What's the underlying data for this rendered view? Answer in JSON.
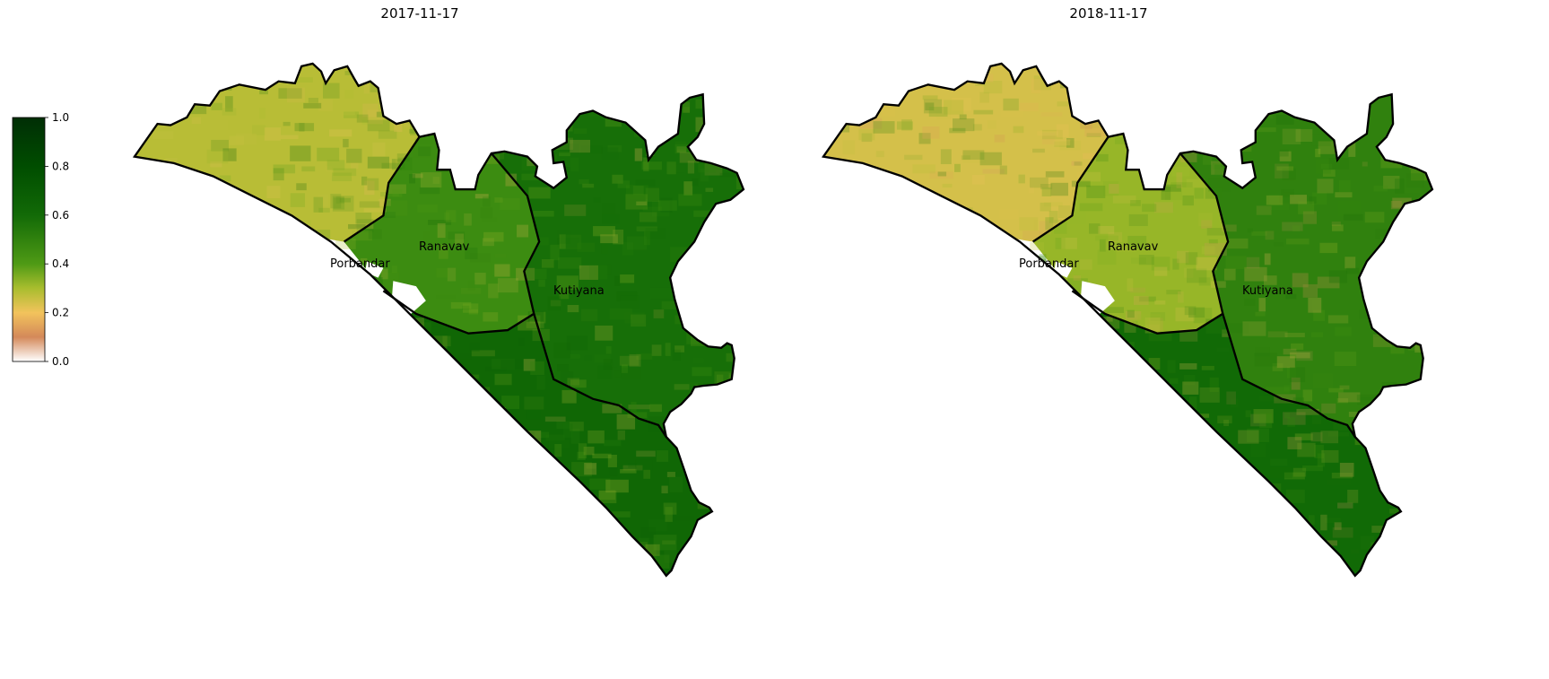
{
  "colorbar": {
    "min": 0.0,
    "max": 1.0,
    "ticks": [
      "0.0",
      "0.2",
      "0.4",
      "0.6",
      "0.8",
      "1.0"
    ],
    "stops": [
      {
        "value": 0.0,
        "color": "#ffffff"
      },
      {
        "value": 0.1,
        "color": "#d4895a"
      },
      {
        "value": 0.2,
        "color": "#f2c35c"
      },
      {
        "value": 0.3,
        "color": "#a9bd2e"
      },
      {
        "value": 0.4,
        "color": "#4f9a15"
      },
      {
        "value": 0.6,
        "color": "#126a07"
      },
      {
        "value": 0.8,
        "color": "#004d00"
      },
      {
        "value": 1.0,
        "color": "#002e05"
      }
    ]
  },
  "maps": [
    {
      "title": "2017-11-17",
      "districts": [
        "Porbandar",
        "Ranavav",
        "Kutiyana"
      ],
      "zone_values": {
        "coast_north": 0.28,
        "ranavav": 0.46,
        "kutiyana": 0.58,
        "coast_south": 0.62
      }
    },
    {
      "title": "2018-11-17",
      "districts": [
        "Porbandar",
        "Ranavav",
        "Kutiyana"
      ],
      "zone_values": {
        "coast_north": 0.24,
        "ranavav": 0.32,
        "kutiyana": 0.5,
        "coast_south": 0.6
      }
    }
  ]
}
